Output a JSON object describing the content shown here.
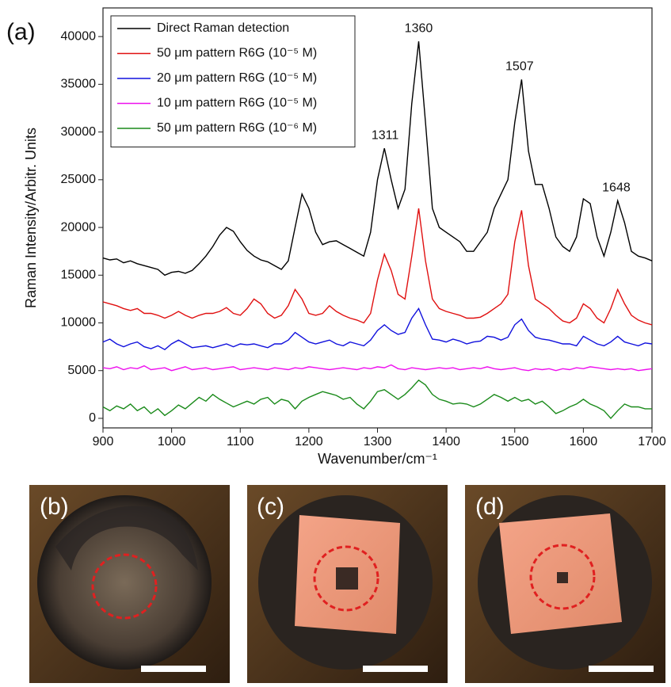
{
  "chart_data": {
    "type": "line",
    "panel_label": "(a)",
    "x_label": "Wavenumber/cm⁻¹",
    "y_label": "Raman Intensity/Arbitr. Units",
    "xlim": [
      900,
      1700
    ],
    "xticks": [
      900,
      1000,
      1100,
      1200,
      1300,
      1400,
      1500,
      1600,
      1700
    ],
    "ylim": [
      -1000,
      43000
    ],
    "yticks": [
      0,
      5000,
      10000,
      15000,
      20000,
      25000,
      30000,
      35000,
      40000
    ],
    "legend": "upper left",
    "x": [
      900,
      910,
      920,
      930,
      940,
      950,
      960,
      970,
      980,
      990,
      1000,
      1010,
      1020,
      1030,
      1040,
      1050,
      1060,
      1070,
      1080,
      1090,
      1100,
      1110,
      1120,
      1130,
      1140,
      1150,
      1160,
      1170,
      1180,
      1190,
      1200,
      1210,
      1220,
      1230,
      1240,
      1250,
      1260,
      1270,
      1280,
      1290,
      1300,
      1310,
      1320,
      1330,
      1340,
      1350,
      1360,
      1370,
      1380,
      1390,
      1400,
      1410,
      1420,
      1430,
      1440,
      1450,
      1460,
      1470,
      1480,
      1490,
      1500,
      1510,
      1520,
      1530,
      1540,
      1550,
      1560,
      1570,
      1580,
      1590,
      1600,
      1610,
      1620,
      1630,
      1640,
      1650,
      1660,
      1670,
      1680,
      1690,
      1700
    ],
    "series": [
      {
        "name": "Direct Raman detection",
        "color": "#000000",
        "values": [
          16800,
          16600,
          16700,
          16300,
          16500,
          16200,
          16000,
          15800,
          15600,
          15000,
          15300,
          15400,
          15200,
          15500,
          16200,
          17000,
          18000,
          19200,
          20000,
          19600,
          18500,
          17600,
          17000,
          16600,
          16400,
          16000,
          15600,
          16500,
          20000,
          23500,
          22000,
          19500,
          18200,
          18500,
          18600,
          18200,
          17800,
          17400,
          17000,
          19500,
          25000,
          28300,
          25000,
          22000,
          24000,
          33000,
          39500,
          31000,
          22000,
          20000,
          19500,
          19000,
          18500,
          17500,
          17500,
          18500,
          19500,
          22000,
          23500,
          25000,
          31000,
          35500,
          28000,
          24500,
          24500,
          22000,
          19000,
          18000,
          17500,
          19000,
          23000,
          22500,
          19000,
          17000,
          19500,
          22800,
          20500,
          17500,
          17000,
          16800,
          16500
        ]
      },
      {
        "name": "50 μm pattern R6G (10⁻⁵ M)",
        "color": "#e01010",
        "values": [
          12200,
          12000,
          11800,
          11500,
          11300,
          11500,
          11000,
          11000,
          10800,
          10500,
          10800,
          11200,
          10800,
          10500,
          10800,
          11000,
          11000,
          11200,
          11600,
          11000,
          10800,
          11500,
          12500,
          12000,
          11000,
          10500,
          10800,
          11800,
          13500,
          12500,
          11000,
          10800,
          11000,
          11800,
          11200,
          10800,
          10500,
          10300,
          10000,
          11000,
          14500,
          17200,
          15500,
          13000,
          12500,
          17000,
          22000,
          16500,
          12500,
          11500,
          11200,
          11000,
          10800,
          10500,
          10500,
          10600,
          11000,
          11500,
          12000,
          13000,
          18500,
          21800,
          16000,
          12500,
          12000,
          11500,
          10800,
          10200,
          10000,
          10500,
          12000,
          11500,
          10500,
          10000,
          11500,
          13500,
          12000,
          10800,
          10300,
          10000,
          9800
        ]
      },
      {
        "name": "20 μm pattern R6G (10⁻⁵ M)",
        "color": "#1010dd",
        "values": [
          8000,
          8300,
          7800,
          7500,
          7800,
          8000,
          7500,
          7300,
          7600,
          7200,
          7800,
          8200,
          7800,
          7400,
          7500,
          7600,
          7400,
          7600,
          7800,
          7500,
          7800,
          7700,
          7800,
          7600,
          7400,
          7800,
          7800,
          8200,
          9000,
          8500,
          8000,
          7800,
          8000,
          8200,
          7800,
          7600,
          8000,
          7800,
          7600,
          8200,
          9200,
          9800,
          9200,
          8800,
          9000,
          10500,
          11500,
          9800,
          8300,
          8200,
          8000,
          8300,
          8100,
          7800,
          8000,
          8100,
          8600,
          8500,
          8200,
          8500,
          9800,
          10400,
          9200,
          8500,
          8300,
          8200,
          8000,
          7800,
          7800,
          7600,
          8600,
          8200,
          7800,
          7600,
          8000,
          8600,
          8000,
          7800,
          7600,
          7900,
          7800
        ]
      },
      {
        "name": "10 μm pattern R6G (10⁻⁵ M)",
        "color": "#ee10ee",
        "values": [
          5300,
          5200,
          5400,
          5100,
          5300,
          5200,
          5500,
          5100,
          5200,
          5300,
          5000,
          5200,
          5400,
          5100,
          5200,
          5300,
          5100,
          5200,
          5300,
          5400,
          5100,
          5200,
          5300,
          5200,
          5100,
          5300,
          5200,
          5100,
          5300,
          5200,
          5400,
          5300,
          5200,
          5100,
          5200,
          5300,
          5200,
          5100,
          5300,
          5200,
          5400,
          5300,
          5600,
          5200,
          5100,
          5300,
          5200,
          5100,
          5200,
          5300,
          5200,
          5300,
          5100,
          5200,
          5300,
          5200,
          5400,
          5200,
          5100,
          5200,
          5300,
          5100,
          5000,
          5200,
          5100,
          5200,
          5000,
          5200,
          5100,
          5300,
          5200,
          5400,
          5300,
          5200,
          5100,
          5200,
          5100,
          5200,
          5000,
          5100,
          5200
        ]
      },
      {
        "name": "50 μm pattern R6G (10⁻⁶ M)",
        "color": "#1a8a1a",
        "values": [
          1200,
          800,
          1300,
          1000,
          1500,
          800,
          1200,
          500,
          1000,
          300,
          800,
          1400,
          1000,
          1600,
          2200,
          1800,
          2500,
          2000,
          1600,
          1200,
          1500,
          1800,
          1500,
          2000,
          2200,
          1500,
          2000,
          1800,
          1000,
          1800,
          2200,
          2500,
          2800,
          2600,
          2400,
          2000,
          2200,
          1500,
          1000,
          1800,
          2800,
          3000,
          2500,
          2000,
          2500,
          3200,
          4000,
          3500,
          2500,
          2000,
          1800,
          1500,
          1600,
          1500,
          1200,
          1500,
          2000,
          2500,
          2200,
          1800,
          2200,
          1800,
          2000,
          1500,
          1800,
          1200,
          500,
          800,
          1200,
          1500,
          2000,
          1500,
          1200,
          800,
          0,
          800,
          1500,
          1200,
          1200,
          1000,
          1000
        ]
      }
    ],
    "annotations": [
      {
        "text": "1311",
        "x": 1311
      },
      {
        "text": "1360",
        "x": 1360
      },
      {
        "text": "1507",
        "x": 1507
      },
      {
        "text": "1648",
        "x": 1648
      }
    ]
  },
  "panels": [
    {
      "label": "(b)"
    },
    {
      "label": "(c)"
    },
    {
      "label": "(d)"
    }
  ]
}
